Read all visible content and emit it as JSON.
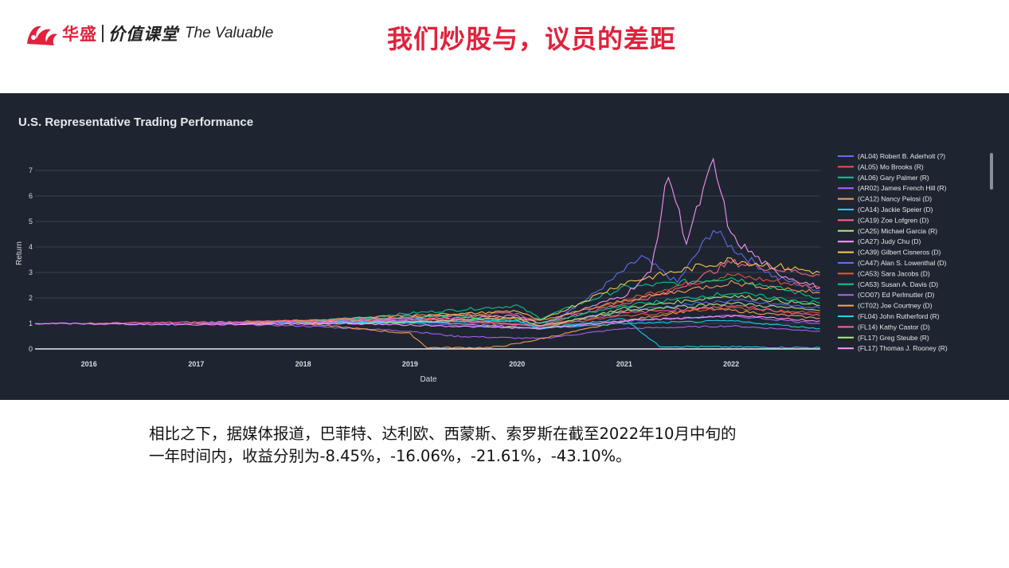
{
  "header": {
    "brand_cn": "华盛",
    "course_cn": "价值课堂",
    "brand_en": "The Valuable",
    "title": "我们炒股与，议员的差距"
  },
  "colors": {
    "accent": "#e0223c",
    "panel_bg": "#1f2530",
    "grid": "#39414f",
    "axis_text": "#d7dbe0"
  },
  "chart_data": {
    "type": "line",
    "title": "U.S. Representative Trading Performance",
    "xlabel": "Date",
    "ylabel": "Return",
    "xlim": [
      "2015-07-01",
      "2022-11-01"
    ],
    "ylim": [
      0,
      7.5
    ],
    "x_ticks": [
      "2016",
      "2017",
      "2018",
      "2019",
      "2020",
      "2021",
      "2022"
    ],
    "y_ticks": [
      "0",
      "1",
      "2",
      "3",
      "4",
      "5",
      "6",
      "7"
    ],
    "grid": true,
    "legend": "right",
    "series": [
      {
        "name": "(AL04) Robert B. Aderholt (?)",
        "color": "#636efa",
        "points": [
          [
            "2015-07-01",
            1.0
          ],
          [
            "2017-01-01",
            1.0
          ],
          [
            "2019-01-01",
            1.0
          ],
          [
            "2020-03-20",
            0.8
          ],
          [
            "2020-09-01",
            2.0
          ],
          [
            "2021-03-01",
            3.6
          ],
          [
            "2021-07-01",
            2.6
          ],
          [
            "2021-11-01",
            4.7
          ],
          [
            "2022-01-01",
            4.0
          ],
          [
            "2022-06-01",
            2.8
          ],
          [
            "2022-10-31",
            2.3
          ]
        ]
      },
      {
        "name": "(AL05) Mo Brooks (R)",
        "color": "#ef553b",
        "points": [
          [
            "2016-12-01",
            1.0
          ],
          [
            "2018-01-01",
            1.1
          ],
          [
            "2019-06-01",
            1.2
          ],
          [
            "2020-03-20",
            0.9
          ],
          [
            "2020-12-01",
            1.8
          ],
          [
            "2021-06-01",
            2.4
          ],
          [
            "2022-01-01",
            2.9
          ],
          [
            "2022-10-31",
            2.4
          ]
        ]
      },
      {
        "name": "(AL06) Gary Palmer (R)",
        "color": "#00cc96",
        "points": [
          [
            "2017-07-01",
            1.0
          ],
          [
            "2018-07-01",
            1.2
          ],
          [
            "2019-01-01",
            1.4
          ],
          [
            "2020-01-01",
            1.7
          ],
          [
            "2020-03-20",
            1.2
          ],
          [
            "2021-01-01",
            2.4
          ],
          [
            "2022-01-01",
            2.8
          ],
          [
            "2022-10-31",
            2.0
          ]
        ]
      },
      {
        "name": "(AR02) James French Hill (R)",
        "color": "#ab63fa",
        "points": [
          [
            "2017-01-01",
            1.0
          ],
          [
            "2018-01-01",
            0.9
          ],
          [
            "2019-01-01",
            0.7
          ],
          [
            "2019-06-01",
            0.5
          ],
          [
            "2020-03-20",
            0.4
          ],
          [
            "2021-01-01",
            0.8
          ],
          [
            "2022-01-01",
            0.9
          ],
          [
            "2022-10-31",
            0.7
          ]
        ]
      },
      {
        "name": "(CA12) Nancy Pelosi (D)",
        "color": "#ffa15a",
        "points": [
          [
            "2018-01-01",
            1.0
          ],
          [
            "2019-01-01",
            0.6
          ],
          [
            "2019-03-01",
            0.05
          ],
          [
            "2019-10-01",
            0.05
          ],
          [
            "2020-01-01",
            0.2
          ],
          [
            "2021-01-01",
            1.1
          ],
          [
            "2021-10-01",
            1.6
          ],
          [
            "2022-10-31",
            1.2
          ]
        ]
      },
      {
        "name": "(CA14) Jackie Speier (D)",
        "color": "#19d3f3",
        "points": [
          [
            "2018-06-01",
            1.0
          ],
          [
            "2020-01-01",
            1.1
          ],
          [
            "2020-03-20",
            0.8
          ],
          [
            "2021-01-01",
            1.2
          ],
          [
            "2021-05-01",
            0.1
          ],
          [
            "2022-10-31",
            0.05
          ]
        ]
      },
      {
        "name": "(CA19) Zoe Lofgren (D)",
        "color": "#ff6692",
        "points": [
          [
            "2016-01-01",
            1.0
          ],
          [
            "2018-01-01",
            1.1
          ],
          [
            "2020-01-01",
            1.4
          ],
          [
            "2020-03-20",
            1.0
          ],
          [
            "2021-06-01",
            2.2
          ],
          [
            "2022-01-01",
            3.4
          ],
          [
            "2022-10-31",
            2.9
          ]
        ]
      },
      {
        "name": "(CA25) Michael Garcia (R)",
        "color": "#b6e880",
        "points": [
          [
            "2017-06-01",
            1.0
          ],
          [
            "2019-01-01",
            1.1
          ],
          [
            "2020-03-20",
            0.8
          ],
          [
            "2021-01-01",
            1.6
          ],
          [
            "2022-01-01",
            2.1
          ],
          [
            "2022-10-31",
            1.7
          ]
        ]
      },
      {
        "name": "(CA27) Judy Chu (D)",
        "color": "#ff97ff",
        "points": [
          [
            "2018-01-01",
            1.0
          ],
          [
            "2020-01-01",
            1.3
          ],
          [
            "2020-03-20",
            1.0
          ],
          [
            "2021-01-01",
            2.1
          ],
          [
            "2021-04-01",
            3.0
          ],
          [
            "2021-06-01",
            6.9
          ],
          [
            "2021-08-01",
            4.2
          ],
          [
            "2021-11-01",
            7.3
          ],
          [
            "2022-01-01",
            4.4
          ],
          [
            "2022-06-01",
            3.0
          ],
          [
            "2022-10-31",
            2.4
          ]
        ]
      },
      {
        "name": "(CA39) Gilbert Cisneros (D)",
        "color": "#fecb52",
        "points": [
          [
            "2018-01-01",
            1.0
          ],
          [
            "2020-01-01",
            1.5
          ],
          [
            "2020-03-20",
            1.1
          ],
          [
            "2021-01-01",
            2.6
          ],
          [
            "2022-01-01",
            3.5
          ],
          [
            "2022-10-31",
            3.0
          ]
        ]
      },
      {
        "name": "(CA47) Alan S. Lowenthal (D)",
        "color": "#636efa",
        "points": [
          [
            "2017-01-01",
            1.0
          ],
          [
            "2019-01-01",
            1.2
          ],
          [
            "2020-03-20",
            0.9
          ],
          [
            "2021-01-01",
            1.5
          ],
          [
            "2022-01-01",
            1.9
          ],
          [
            "2022-10-31",
            1.6
          ]
        ]
      },
      {
        "name": "(CA53) Sara Jacobs (D)",
        "color": "#ef553b",
        "points": [
          [
            "2018-01-01",
            1.0
          ],
          [
            "2020-01-01",
            1.2
          ],
          [
            "2020-03-20",
            0.9
          ],
          [
            "2021-01-01",
            1.3
          ],
          [
            "2022-01-01",
            1.6
          ],
          [
            "2022-10-31",
            1.4
          ]
        ]
      },
      {
        "name": "(CA53) Susan A. Davis (D)",
        "color": "#00cc96",
        "points": [
          [
            "2017-06-01",
            1.0
          ],
          [
            "2019-06-01",
            1.3
          ],
          [
            "2020-03-20",
            1.0
          ],
          [
            "2021-01-01",
            1.7
          ],
          [
            "2022-01-01",
            2.2
          ],
          [
            "2022-10-31",
            1.8
          ]
        ]
      },
      {
        "name": "(CO07) Ed Perlmutter (D)",
        "color": "#ab63fa",
        "points": [
          [
            "2017-01-01",
            1.0
          ],
          [
            "2019-01-01",
            1.1
          ],
          [
            "2020-03-20",
            0.8
          ],
          [
            "2021-01-01",
            1.1
          ],
          [
            "2022-01-01",
            1.3
          ],
          [
            "2022-10-31",
            1.0
          ]
        ]
      },
      {
        "name": "(CT02) Joe Courtney (D)",
        "color": "#ffa15a",
        "points": [
          [
            "2017-06-01",
            1.0
          ],
          [
            "2019-06-01",
            1.4
          ],
          [
            "2020-03-20",
            1.1
          ],
          [
            "2021-01-01",
            1.9
          ],
          [
            "2022-01-01",
            2.6
          ],
          [
            "2022-10-31",
            2.2
          ]
        ]
      },
      {
        "name": "(FL04) John Rutherford (R)",
        "color": "#19d3f3",
        "points": [
          [
            "2018-01-01",
            1.0
          ],
          [
            "2020-01-01",
            1.1
          ],
          [
            "2020-03-20",
            0.8
          ],
          [
            "2021-01-01",
            1.0
          ],
          [
            "2022-01-01",
            1.1
          ],
          [
            "2022-10-31",
            0.8
          ]
        ]
      },
      {
        "name": "(FL14) Kathy Castor (D)",
        "color": "#ff6692",
        "points": [
          [
            "2017-01-01",
            1.0
          ],
          [
            "2019-01-01",
            1.2
          ],
          [
            "2020-03-20",
            0.9
          ],
          [
            "2021-01-01",
            1.4
          ],
          [
            "2022-01-01",
            1.7
          ],
          [
            "2022-10-31",
            1.3
          ]
        ]
      },
      {
        "name": "(FL17) Greg Steube (R)",
        "color": "#b6e880",
        "points": [
          [
            "2018-06-01",
            1.0
          ],
          [
            "2020-01-01",
            1.2
          ],
          [
            "2020-03-20",
            0.9
          ],
          [
            "2021-01-01",
            1.5
          ],
          [
            "2022-01-01",
            1.8
          ],
          [
            "2022-10-31",
            1.5
          ]
        ]
      },
      {
        "name": "(FL17) Thomas J. Rooney (R)",
        "color": "#ff97ff",
        "points": [
          [
            "2015-07-01",
            1.0
          ],
          [
            "2017-01-01",
            0.95
          ],
          [
            "2018-06-01",
            1.0
          ],
          [
            "2020-03-20",
            0.8
          ],
          [
            "2021-01-01",
            1.1
          ],
          [
            "2022-01-01",
            1.3
          ],
          [
            "2022-10-31",
            1.1
          ]
        ]
      }
    ]
  },
  "body": {
    "line1": "相比之下，据媒体报道，巴菲特、达利欧、西蒙斯、索罗斯在截至2022年10月中旬的",
    "line2": "一年时间内，收益分别为-8.45%，-16.06%，-21.61%，-43.10%。"
  }
}
